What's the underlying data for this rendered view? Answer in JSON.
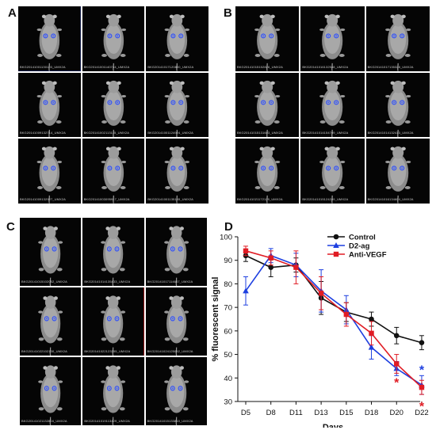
{
  "panels": {
    "A": {
      "letter": "A",
      "tiles": [
        "BKG20141001130103_UMX2A",
        "BKG20141001140744_UMX2A",
        "BKG20141017120800_UMX2A",
        "BKG20141009132714_UMX2A",
        "BKG20141002113115_UMX2A",
        "BKG20141001124924_UMX2A",
        "BKG20141009132927_UMX2A",
        "BKG20141003095917_UMX2A",
        "BKG20141001135145_UMX2A"
      ]
    },
    "B": {
      "letter": "B",
      "tiles": [
        "BKG20141015152826_UMX2A",
        "BKG20141016132548_UMX2A",
        "BKG20141017135328_UMX2A",
        "BKG20141015131603_UMX2A",
        "BKG20141014154709_UMX2A",
        "BKG20141014132413_UMX2A",
        "BKG20141021172129_UMX2A",
        "BKG20141015124249_UMX2A",
        "BKG20141016134604_UMX2A"
      ]
    },
    "C": {
      "letter": "C",
      "tiles": [
        "BKG20141015102052_UMX2A",
        "BKG20141014135433_UMX2A",
        "BKG20141017114647_UMX2A",
        "BKG20141022102130_UMX2A",
        "BKG20141022123355_UMX2A",
        "BKG20141024125052_UMX2A",
        "BKG20141021132804_UMX2A",
        "BKG20141019113429_UMX2A",
        "BKG20141015133810_UMX2A"
      ]
    },
    "D": {
      "letter": "D"
    }
  },
  "colors": {
    "control": "#111111",
    "d2ag": "#1d3fe0",
    "antivegf": "#e01c24"
  },
  "chart_data": {
    "type": "line",
    "categories": [
      "D5",
      "D8",
      "D11",
      "D13",
      "D15",
      "D18",
      "D20",
      "D22"
    ],
    "ylabel": "% fluorescent signal",
    "xlabel": "Days",
    "ylim": [
      30,
      100
    ],
    "yticks": [
      30,
      40,
      50,
      60,
      70,
      80,
      90,
      100
    ],
    "legend_position": "top-right",
    "series": [
      {
        "name": "Control",
        "marker": "circle",
        "color": "#111111",
        "values": [
          92,
          87,
          88,
          74,
          68,
          65,
          58,
          55
        ],
        "errors": [
          2.5,
          4,
          3,
          7,
          4,
          3,
          3.5,
          3
        ]
      },
      {
        "name": "D2-ag",
        "marker": "triangle",
        "color": "#1d3fe0",
        "values": [
          77,
          92,
          88,
          77,
          69,
          53,
          44,
          37
        ],
        "errors": [
          6,
          3,
          5,
          9,
          6,
          5,
          3,
          4
        ]
      },
      {
        "name": "Anti-VEGF",
        "marker": "square",
        "color": "#e01c24",
        "values": [
          94,
          91,
          87,
          76,
          67,
          59,
          46,
          36
        ],
        "errors": [
          2,
          3,
          7,
          7,
          5,
          5,
          4,
          3
        ]
      }
    ],
    "annotations": [
      {
        "text": "*",
        "x": "D20",
        "y": 38.5,
        "color": "#e01c24"
      },
      {
        "text": "*",
        "x": "D22",
        "y": 44,
        "color": "#1d3fe0"
      },
      {
        "text": "*",
        "x": "D22",
        "y": 28.5,
        "color": "#e01c24"
      }
    ]
  }
}
